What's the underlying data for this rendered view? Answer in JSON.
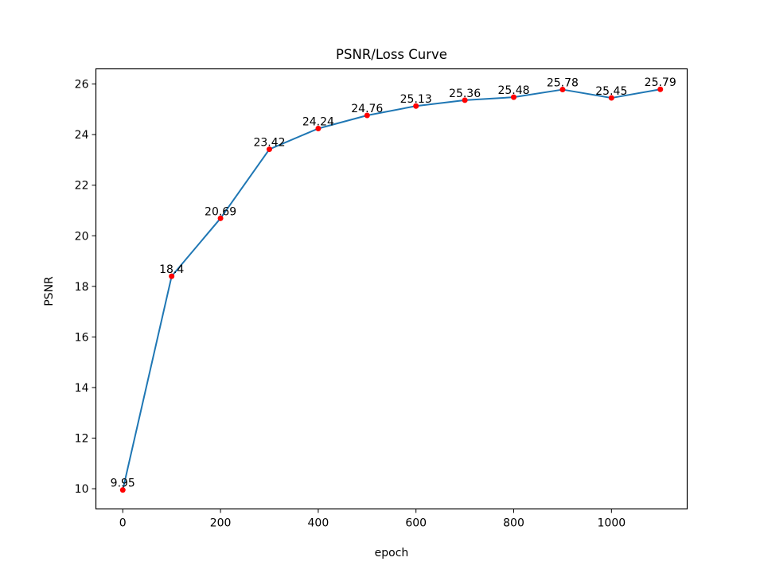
{
  "chart_data": {
    "type": "line",
    "title": "PSNR/Loss Curve",
    "xlabel": "epoch",
    "ylabel": "PSNR",
    "x": [
      0,
      100,
      200,
      300,
      400,
      500,
      600,
      700,
      800,
      900,
      1000,
      1100
    ],
    "series": [
      {
        "name": "PSNR",
        "values": [
          9.95,
          18.4,
          20.69,
          23.42,
          24.24,
          24.76,
          25.13,
          25.36,
          25.48,
          25.78,
          25.45,
          25.79
        ],
        "labels": [
          "9.95",
          "18.4",
          "20.69",
          "23.42",
          "24.24",
          "24.76",
          "25.13",
          "25.36",
          "25.48",
          "25.78",
          "25.45",
          "25.79"
        ],
        "line_color": "#1f77b4",
        "marker_color": "#ff0000"
      }
    ],
    "xlim": [
      -55,
      1155
    ],
    "ylim": [
      9.2,
      26.6
    ],
    "xticks": [
      0,
      200,
      400,
      600,
      800,
      1000
    ],
    "xtick_labels": [
      "0",
      "200",
      "400",
      "600",
      "800",
      "1000"
    ],
    "yticks": [
      10,
      12,
      14,
      16,
      18,
      20,
      22,
      24,
      26
    ],
    "ytick_labels": [
      "10",
      "12",
      "14",
      "16",
      "18",
      "20",
      "22",
      "24",
      "26"
    ],
    "grid": false,
    "legend": "none"
  }
}
